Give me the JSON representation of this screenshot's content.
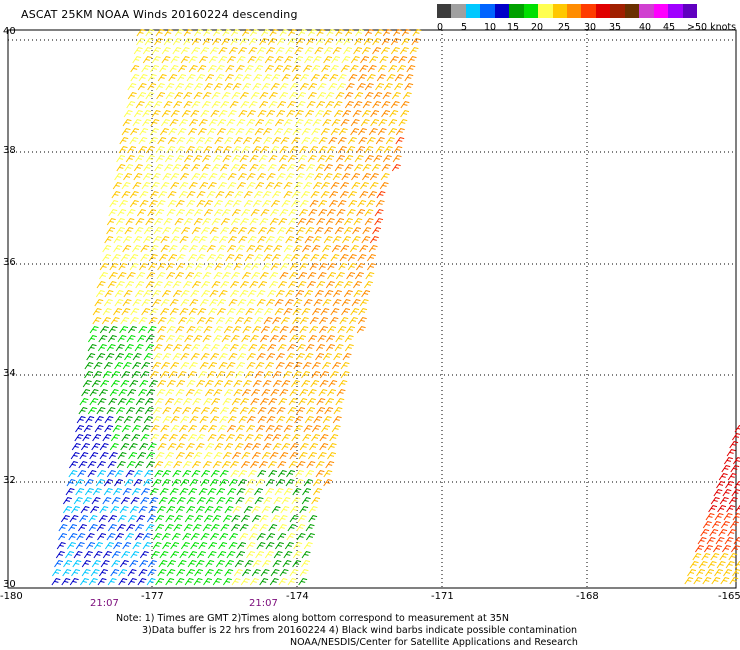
{
  "title": "ASCAT 25KM NOAA Winds 20160224 descending",
  "legend": {
    "colors": [
      "#3c3c3c",
      "#a0a0a0",
      "#00c8ff",
      "#0064ff",
      "#0000c8",
      "#00a000",
      "#00e000",
      "#ffff50",
      "#ffc800",
      "#ff8c00",
      "#ff3c00",
      "#e00000",
      "#a02000",
      "#6a3000",
      "#d040d0",
      "#ff00ff",
      "#a000ff",
      "#6000c0"
    ],
    "labels": [
      "0",
      "5",
      "10",
      "15",
      "20",
      "25",
      "30",
      "35",
      "40",
      "45",
      ">50 knots"
    ]
  },
  "axes": {
    "y_labels": [
      "40",
      "38",
      "36",
      "34",
      "32",
      "30"
    ],
    "x_labels": [
      "-180",
      "-177",
      "-174",
      "-171",
      "-168",
      "-165"
    ],
    "times": [
      "21:07",
      "21:07"
    ]
  },
  "notes": {
    "line1": "Note: 1) Times are GMT 2)Times along bottom correspond to measurement at 35N",
    "line2": "3)Data buffer is 22 hrs from 20160224 4) Black wind barbs indicate possible contamination",
    "line3": "NOAA/NESDIS/Center for Satellite Applications and Research"
  }
}
